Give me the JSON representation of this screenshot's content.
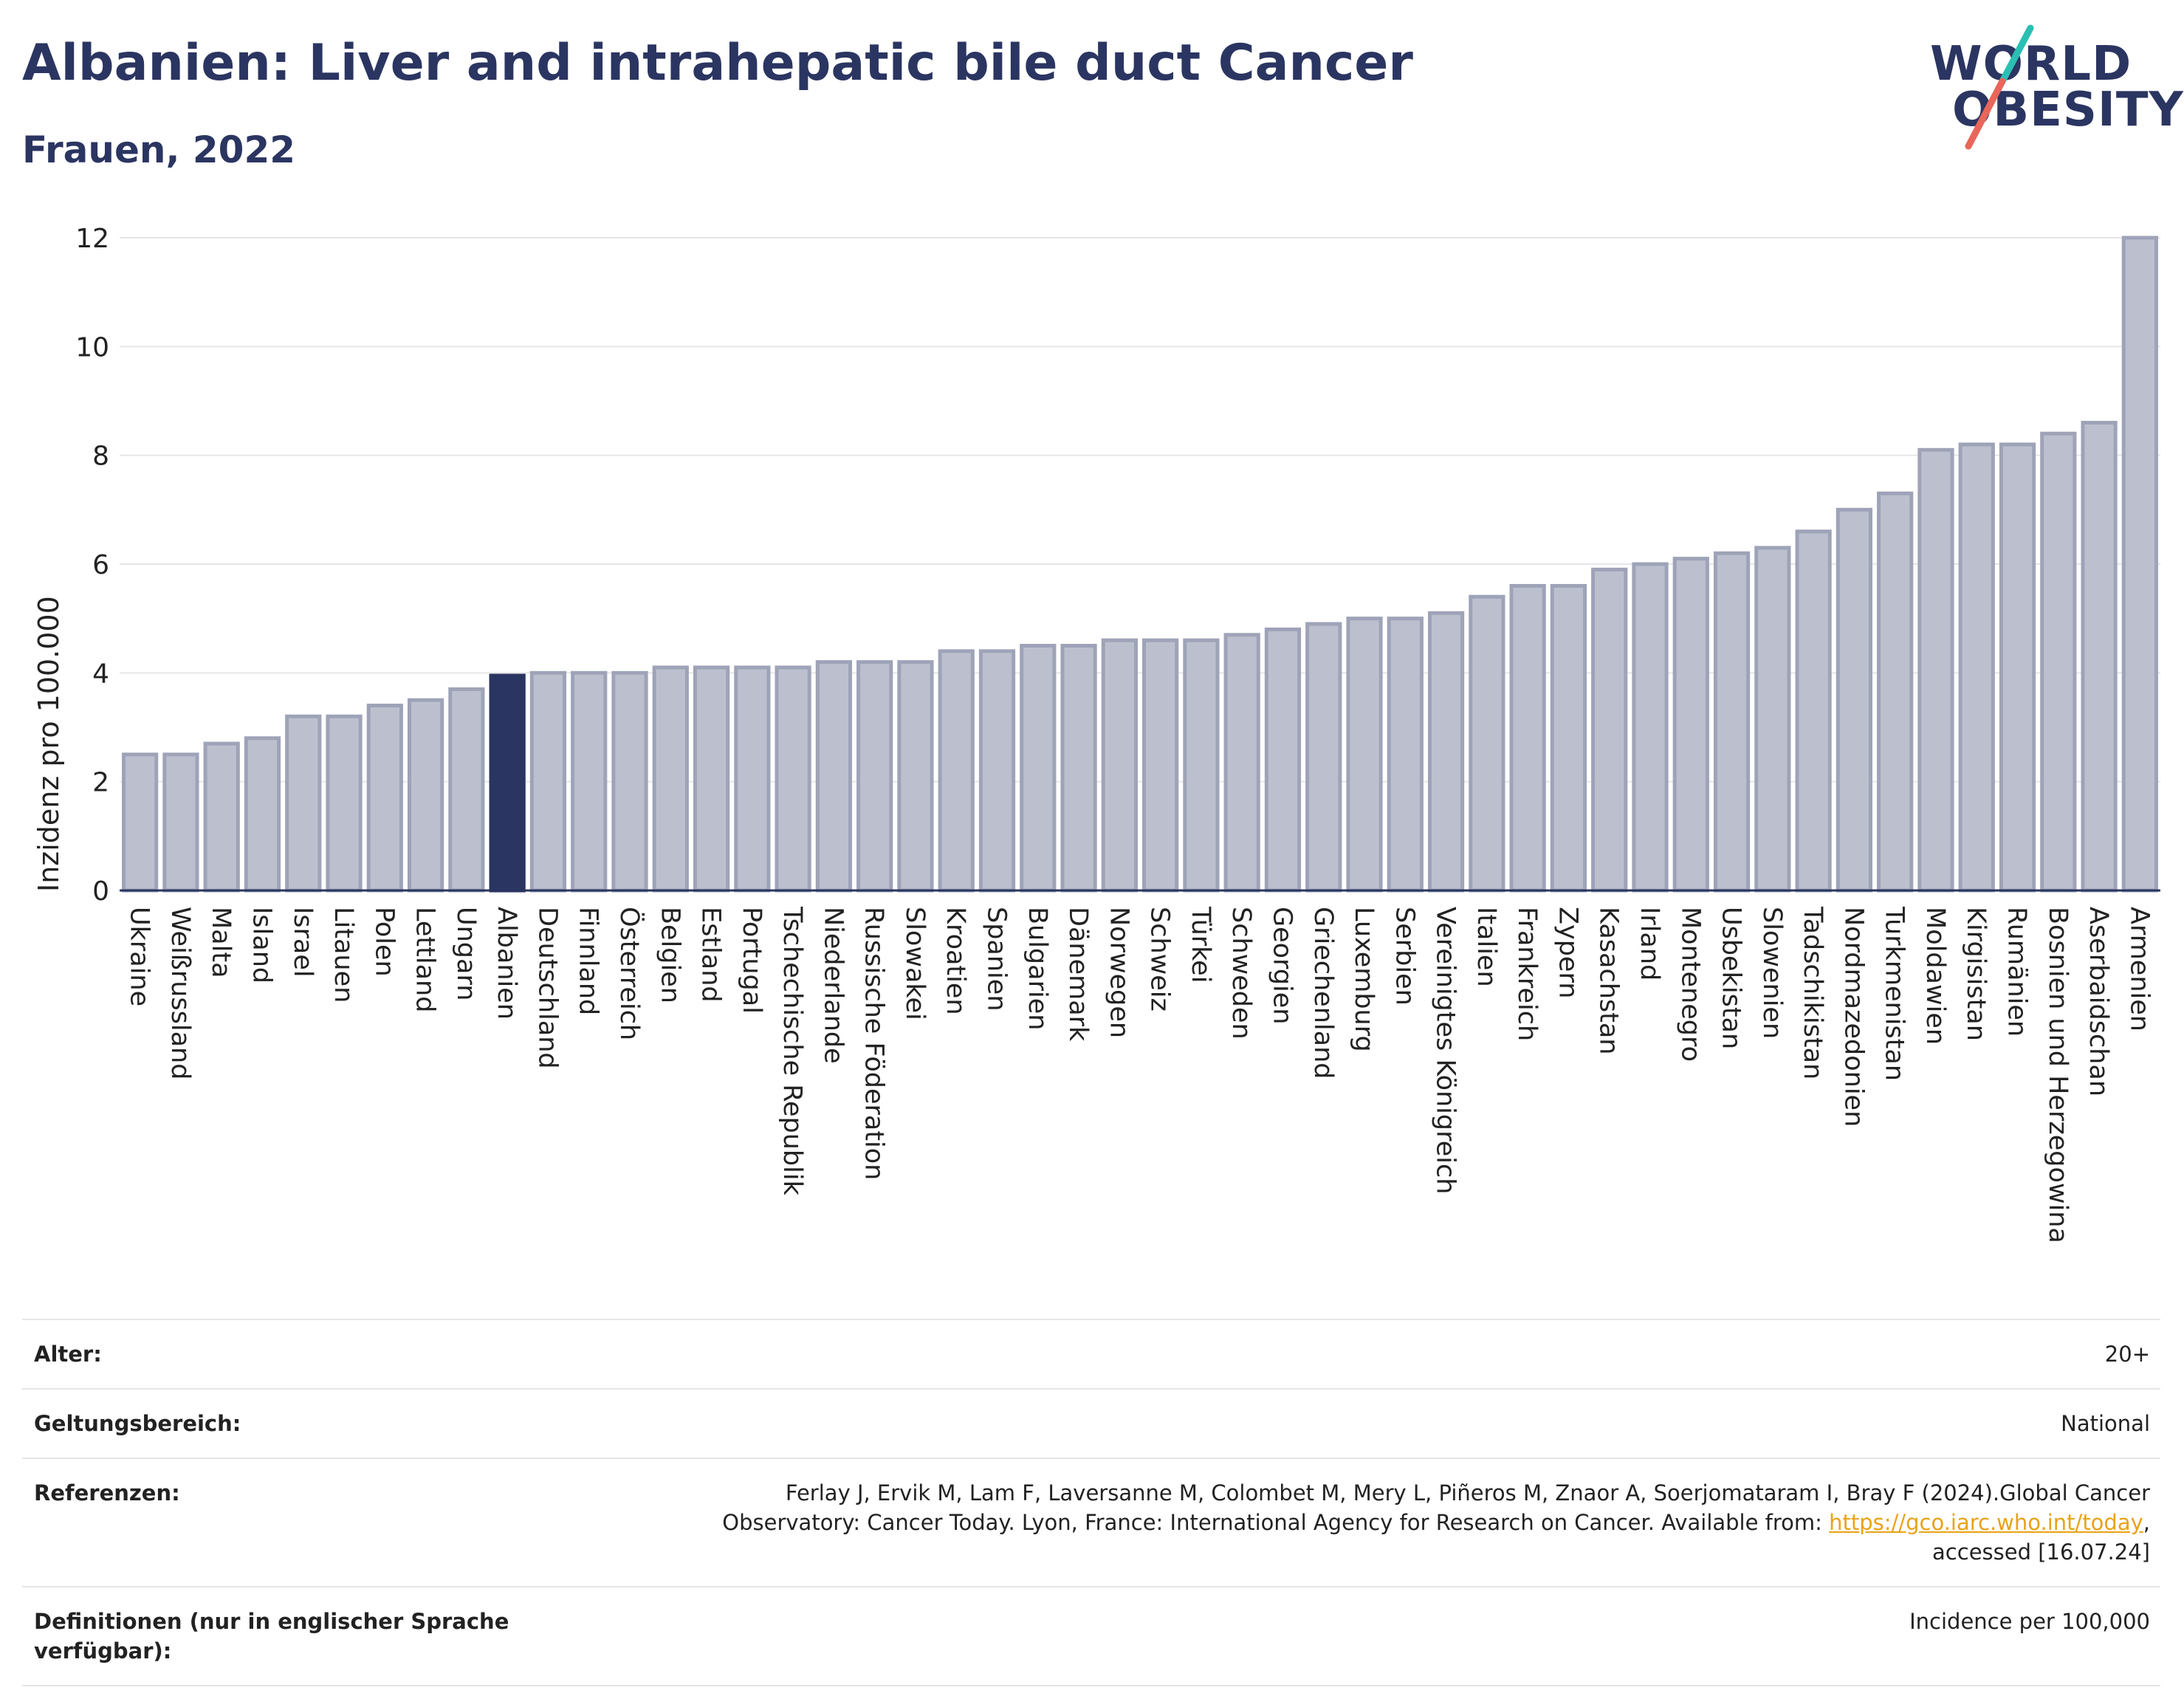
{
  "header": {
    "title": "Albanien: Liver and intrahepatic bile duct Cancer",
    "subtitle": "Frauen, 2022"
  },
  "logo": {
    "line1": "WORLD",
    "line2": "OBESITY",
    "colors": {
      "text": "#2b3561",
      "slash_top": "#2bbfb3",
      "slash_bottom": "#e8665a"
    }
  },
  "chart_data": {
    "type": "bar",
    "title": "Albanien: Liver and intrahepatic bile duct Cancer",
    "subtitle": "Frauen, 2022",
    "xlabel": "",
    "ylabel": "Inzidenz pro 100.000",
    "ylim": [
      0,
      12
    ],
    "yticks": [
      0,
      2,
      4,
      6,
      8,
      10,
      12
    ],
    "grid": true,
    "highlight": "Albanien",
    "colors": {
      "bar": "#bcc0ce",
      "bar_edge": "#9ea3b8",
      "highlight": "#2b3561"
    },
    "categories": [
      "Ukraine",
      "Weißrussland",
      "Malta",
      "Island",
      "Israel",
      "Litauen",
      "Polen",
      "Lettland",
      "Ungarn",
      "Albanien",
      "Deutschland",
      "Finnland",
      "Österreich",
      "Belgien",
      "Estland",
      "Portugal",
      "Tschechische Republik",
      "Niederlande",
      "Russische Föderation",
      "Slowakei",
      "Kroatien",
      "Spanien",
      "Bulgarien",
      "Dänemark",
      "Norwegen",
      "Schweiz",
      "Türkei",
      "Schweden",
      "Georgien",
      "Griechenland",
      "Luxemburg",
      "Serbien",
      "Vereinigtes Königreich",
      "Italien",
      "Frankreich",
      "Zypern",
      "Kasachstan",
      "Irland",
      "Montenegro",
      "Usbekistan",
      "Slowenien",
      "Tadschikistan",
      "Nordmazedonien",
      "Turkmenistan",
      "Moldawien",
      "Kirgisistan",
      "Rumänien",
      "Bosnien und Herzegowina",
      "Aserbaidschan",
      "Armenien"
    ],
    "values": [
      2.5,
      2.5,
      2.7,
      2.8,
      3.2,
      3.2,
      3.4,
      3.5,
      3.7,
      3.95,
      4.0,
      4.0,
      4.0,
      4.1,
      4.1,
      4.1,
      4.1,
      4.2,
      4.2,
      4.2,
      4.4,
      4.4,
      4.5,
      4.5,
      4.6,
      4.6,
      4.6,
      4.7,
      4.8,
      4.9,
      5.0,
      5.0,
      5.1,
      5.4,
      5.6,
      5.6,
      5.9,
      6.0,
      6.1,
      6.2,
      6.3,
      6.6,
      7.0,
      7.3,
      8.1,
      8.2,
      8.2,
      8.4,
      8.6,
      12.0
    ]
  },
  "meta": {
    "rows": [
      {
        "key": "Alter:",
        "value": "20+"
      },
      {
        "key": "Geltungsbereich:",
        "value": "National"
      },
      {
        "key": "Referenzen:",
        "value_line1": "Ferlay J, Ervik M, Lam F, Laversanne M, Colombet M, Mery L, Piñeros M, Znaor A, Soerjomataram I, Bray F (2024).Global Cancer",
        "value_line2_pre": "Observatory: Cancer Today. Lyon, France: International Agency for Research on Cancer. Available from: ",
        "link": "https://gco.iarc.who.int/today",
        "value_line2_post": ",",
        "value_line3": "accessed [16.07.24]"
      },
      {
        "key": "Definitionen (nur in englischer Sprache verfügbar):",
        "value": "Incidence per 100,000"
      }
    ]
  }
}
